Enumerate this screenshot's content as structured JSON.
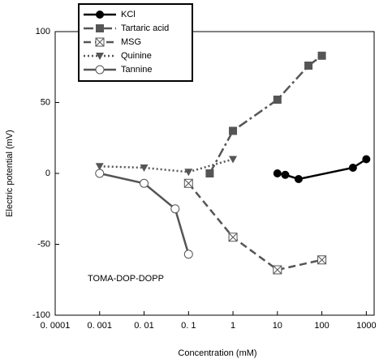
{
  "chart_data": {
    "type": "line",
    "xlabel": "Concentration (mM)",
    "ylabel": "Electric potential (mV)",
    "annotation": "TOMA-DOP-DOPP",
    "xscale": "log",
    "xlim": [
      0.0001,
      1500
    ],
    "ylim": [
      -100,
      100
    ],
    "xticks": [
      {
        "value": 0.0001,
        "label": "0. 0001"
      },
      {
        "value": 0.001,
        "label": "0. 001"
      },
      {
        "value": 0.01,
        "label": "0. 01"
      },
      {
        "value": 0.1,
        "label": "0. 1"
      },
      1,
      10,
      100,
      1000
    ],
    "yticks": [
      -100,
      -50,
      0,
      50,
      100
    ],
    "legend": "upper left",
    "series": [
      {
        "name": "KCl",
        "color": "#000000",
        "marker": "filled-circle",
        "linestyle": "solid",
        "x": [
          10,
          15,
          30,
          500,
          1000
        ],
        "values": [
          0,
          -1,
          -4,
          4,
          10
        ]
      },
      {
        "name": "Tartaric acid",
        "color": "#555555",
        "marker": "filled-square",
        "linestyle": "dashdot",
        "x": [
          0.3,
          1,
          10,
          50,
          100
        ],
        "values": [
          0,
          30,
          52,
          76,
          83
        ]
      },
      {
        "name": "MSG",
        "color": "#555555",
        "marker": "crossed-square",
        "linestyle": "dashed",
        "x": [
          0.1,
          1,
          10,
          100
        ],
        "values": [
          -7,
          -45,
          -68,
          -61
        ]
      },
      {
        "name": "Quinine",
        "color": "#555555",
        "marker": "filled-triangle-down",
        "linestyle": "dotted",
        "x": [
          0.001,
          0.01,
          0.1,
          1
        ],
        "values": [
          5,
          4,
          1,
          10
        ]
      },
      {
        "name": "Tannine",
        "color": "#555555",
        "marker": "open-circle",
        "linestyle": "solid",
        "x": [
          0.001,
          0.01,
          0.05,
          0.1
        ],
        "values": [
          0,
          -7,
          -25,
          -57
        ]
      }
    ]
  }
}
